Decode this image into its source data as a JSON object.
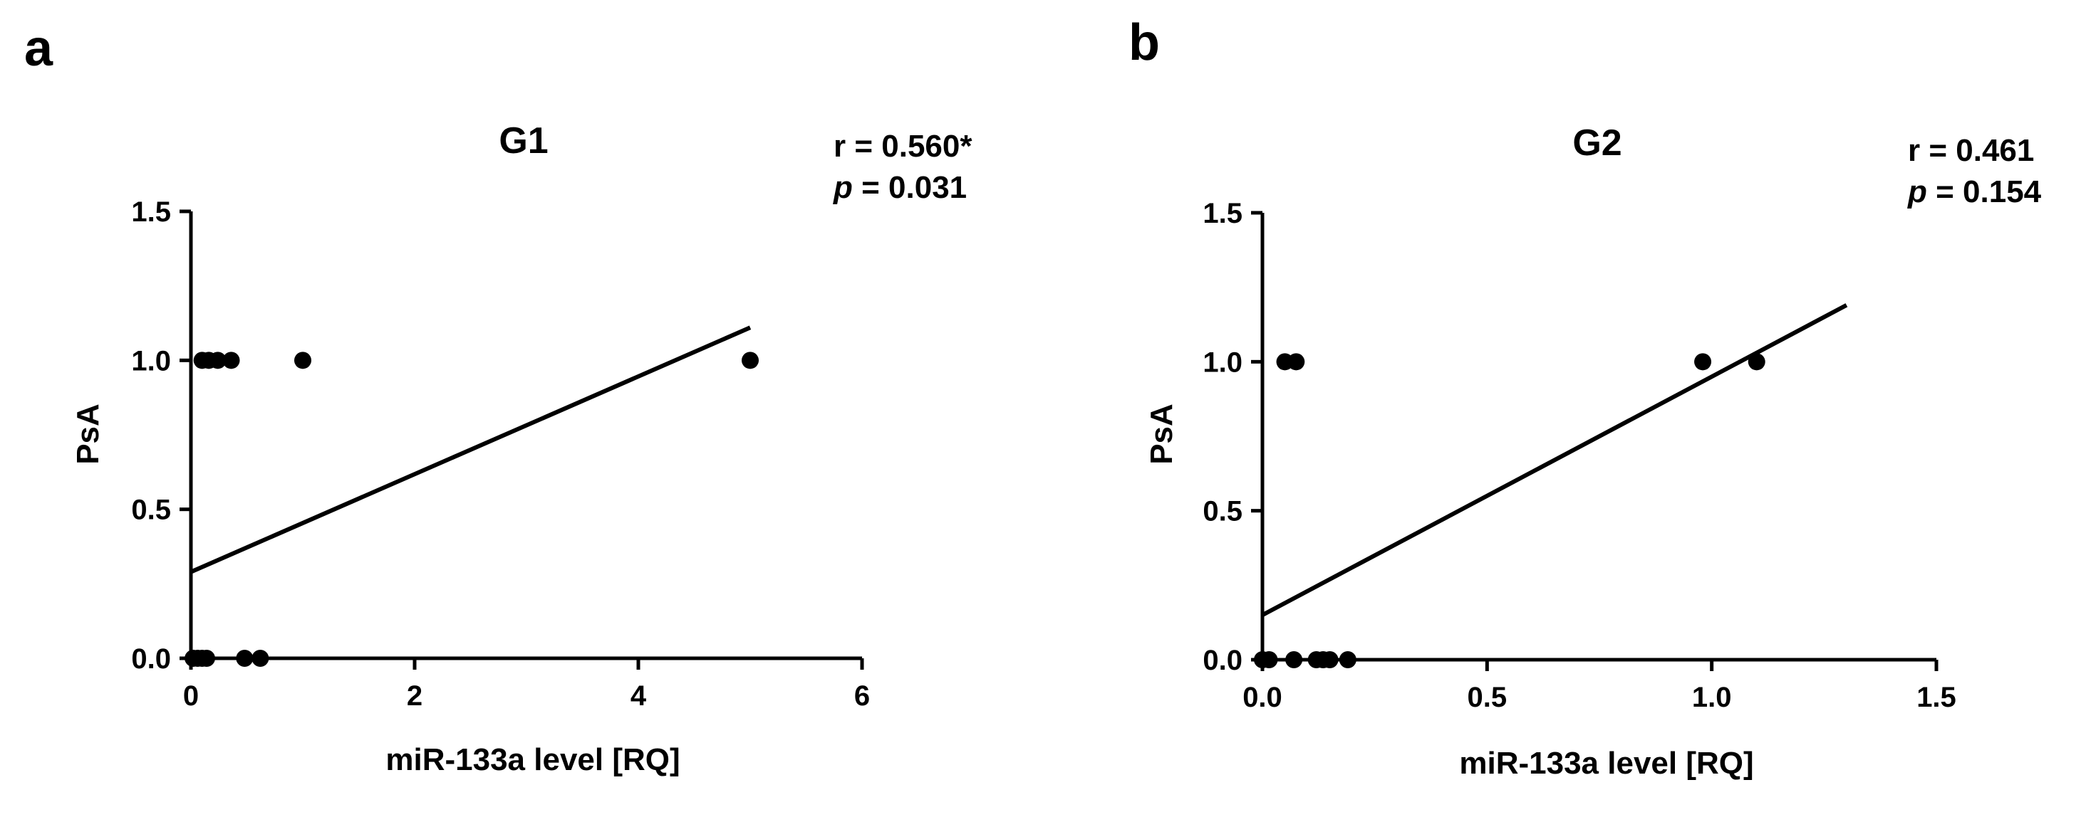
{
  "figure": {
    "panels": [
      {
        "letter": "a",
        "title": "G1",
        "stat_r": "r = 0.560*",
        "stat_p_prefix": "p",
        "stat_p_value": " = 0.031"
      },
      {
        "letter": "b",
        "title": "G2",
        "stat_r": "r = 0.461",
        "stat_p_prefix": "p",
        "stat_p_value": " = 0.154"
      }
    ]
  },
  "chart_data": [
    {
      "type": "scatter",
      "title": "G1",
      "xlabel": "miR-133a level [RQ]",
      "ylabel": "PsA",
      "xlim": [
        0,
        6
      ],
      "ylim": [
        0,
        1.5
      ],
      "x_ticks": [
        "0",
        "2",
        "4",
        "6"
      ],
      "x_tick_values": [
        0,
        2,
        4,
        6
      ],
      "y_ticks": [
        "0.0",
        "0.5",
        "1.0",
        "1.5"
      ],
      "y_tick_values": [
        0,
        0.5,
        1,
        1.5
      ],
      "points": [
        {
          "x": 0.02,
          "y": 0
        },
        {
          "x": 0.06,
          "y": 0
        },
        {
          "x": 0.1,
          "y": 0
        },
        {
          "x": 0.14,
          "y": 0
        },
        {
          "x": 0.48,
          "y": 0
        },
        {
          "x": 0.62,
          "y": 0
        },
        {
          "x": 0.1,
          "y": 1
        },
        {
          "x": 0.16,
          "y": 1
        },
        {
          "x": 0.24,
          "y": 1
        },
        {
          "x": 0.36,
          "y": 1
        },
        {
          "x": 1.0,
          "y": 1
        },
        {
          "x": 5.0,
          "y": 1
        }
      ],
      "regression_line": {
        "x": [
          0,
          5
        ],
        "y": [
          0.29,
          1.11
        ]
      },
      "annotation": {
        "r": "r = 0.560*",
        "p": "p = 0.031"
      },
      "grid": false,
      "color": "#000000"
    },
    {
      "type": "scatter",
      "title": "G2",
      "xlabel": "miR-133a level [RQ]",
      "ylabel": "PsA",
      "xlim": [
        0,
        1.5
      ],
      "ylim": [
        0,
        1.5
      ],
      "x_ticks": [
        "0.0",
        "0.5",
        "1.0",
        "1.5"
      ],
      "x_tick_values": [
        0,
        0.5,
        1,
        1.5
      ],
      "y_ticks": [
        "0.0",
        "0.5",
        "1.0",
        "1.5"
      ],
      "y_tick_values": [
        0,
        0.5,
        1,
        1.5
      ],
      "points": [
        {
          "x": 0.0,
          "y": 0
        },
        {
          "x": 0.015,
          "y": 0
        },
        {
          "x": 0.07,
          "y": 0
        },
        {
          "x": 0.12,
          "y": 0
        },
        {
          "x": 0.135,
          "y": 0
        },
        {
          "x": 0.15,
          "y": 0
        },
        {
          "x": 0.19,
          "y": 0
        },
        {
          "x": 0.05,
          "y": 1
        },
        {
          "x": 0.075,
          "y": 1
        },
        {
          "x": 0.98,
          "y": 1
        },
        {
          "x": 1.1,
          "y": 1
        }
      ],
      "regression_line": {
        "x": [
          0,
          1.3
        ],
        "y": [
          0.15,
          1.19
        ]
      },
      "annotation": {
        "r": "r = 0.461",
        "p": "p = 0.154"
      },
      "grid": false,
      "color": "#000000"
    }
  ]
}
